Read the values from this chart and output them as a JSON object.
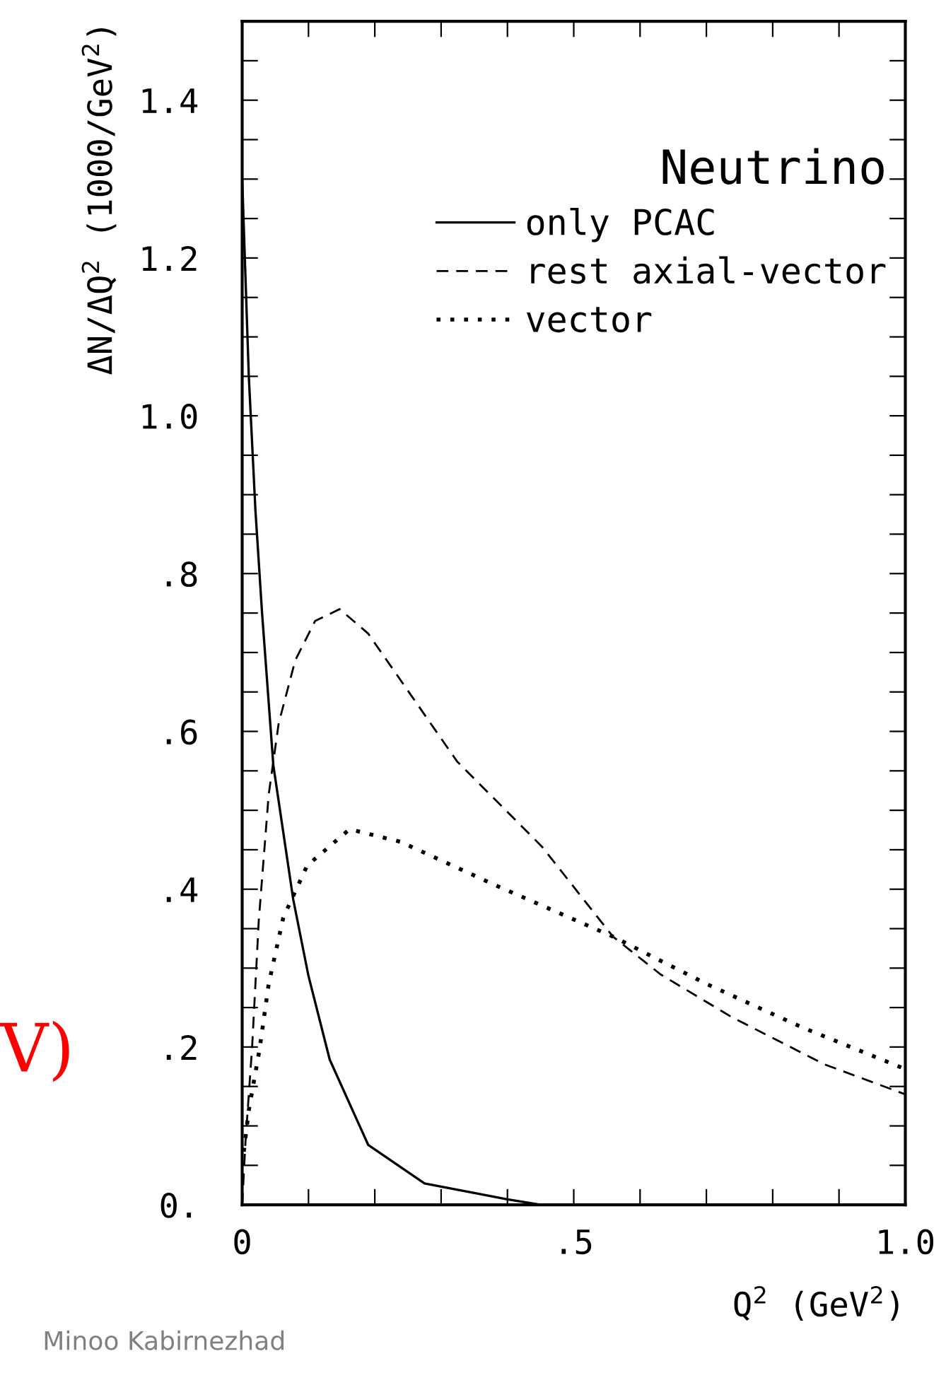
{
  "chart_data": {
    "type": "line",
    "xlabel": "Q$^{2}$ (GeV$^{2}$)",
    "ylabel": "ΔN/ΔQ$^{2}$ (1000/GeV$^{2}$)",
    "legend_title": "Neutrino",
    "legend": "top right",
    "grid": false,
    "xlim": [
      0,
      1.0
    ],
    "ylim": [
      0,
      1.5
    ],
    "xticks": [
      {
        "value": 0,
        "label": "0"
      },
      {
        "value": 0.1,
        "label": null
      },
      {
        "value": 0.2,
        "label": null
      },
      {
        "value": 0.3,
        "label": null
      },
      {
        "value": 0.4,
        "label": null
      },
      {
        "value": 0.5,
        "label": ".5"
      },
      {
        "value": 0.6,
        "label": null
      },
      {
        "value": 0.7,
        "label": null
      },
      {
        "value": 0.8,
        "label": null
      },
      {
        "value": 0.9,
        "label": null
      },
      {
        "value": 1.0,
        "label": "1.0"
      }
    ],
    "yticks": [
      {
        "value": 0,
        "label": "0."
      },
      {
        "value": 0.05,
        "label": null
      },
      {
        "value": 0.1,
        "label": null
      },
      {
        "value": 0.15,
        "label": null
      },
      {
        "value": 0.2,
        "label": ".2"
      },
      {
        "value": 0.25,
        "label": null
      },
      {
        "value": 0.3,
        "label": null
      },
      {
        "value": 0.35,
        "label": null
      },
      {
        "value": 0.4,
        "label": ".4"
      },
      {
        "value": 0.45,
        "label": null
      },
      {
        "value": 0.5,
        "label": null
      },
      {
        "value": 0.55,
        "label": null
      },
      {
        "value": 0.6,
        "label": ".6"
      },
      {
        "value": 0.65,
        "label": null
      },
      {
        "value": 0.7,
        "label": null
      },
      {
        "value": 0.75,
        "label": null
      },
      {
        "value": 0.8,
        "label": ".8"
      },
      {
        "value": 0.85,
        "label": null
      },
      {
        "value": 0.9,
        "label": null
      },
      {
        "value": 0.95,
        "label": null
      },
      {
        "value": 1.0,
        "label": "1.0"
      },
      {
        "value": 1.05,
        "label": null
      },
      {
        "value": 1.1,
        "label": null
      },
      {
        "value": 1.15,
        "label": null
      },
      {
        "value": 1.2,
        "label": "1.2"
      },
      {
        "value": 1.25,
        "label": null
      },
      {
        "value": 1.3,
        "label": null
      },
      {
        "value": 1.35,
        "label": null
      },
      {
        "value": 1.4,
        "label": "1.4"
      },
      {
        "value": 1.45,
        "label": null
      },
      {
        "value": 1.5,
        "label": null
      }
    ],
    "annotations": [
      "V)",
      "Minoo Kabirnezhad"
    ],
    "series": [
      {
        "name": "only PCAC",
        "color": "#000000",
        "line_style": "solid",
        "x": [
          0,
          0.01,
          0.02,
          0.03,
          0.047,
          0.077,
          0.1,
          0.132,
          0.19,
          0.275,
          0.4,
          0.45
        ],
        "values": [
          1.3,
          1.05,
          0.88,
          0.75,
          0.557,
          0.387,
          0.29,
          0.184,
          0.076,
          0.027,
          0.007,
          0
        ]
      },
      {
        "name": "rest axial-vector",
        "color": "#000000",
        "line_style": "dashed",
        "x": [
          0,
          0.005,
          0.015,
          0.025,
          0.04,
          0.055,
          0.08,
          0.11,
          0.147,
          0.19,
          0.324,
          0.452,
          0.559,
          0.631,
          0.738,
          0.878,
          1.0
        ],
        "values": [
          0,
          0.08,
          0.2,
          0.36,
          0.52,
          0.61,
          0.69,
          0.74,
          0.755,
          0.724,
          0.562,
          0.454,
          0.34,
          0.292,
          0.238,
          0.178,
          0.14
        ]
      },
      {
        "name": "vector",
        "color": "#000000",
        "line_style": "dotted",
        "x": [
          0,
          0.01,
          0.026,
          0.04,
          0.062,
          0.098,
          0.162,
          0.239,
          0.382,
          0.559,
          0.7,
          0.844,
          1.0
        ],
        "values": [
          0.05,
          0.12,
          0.196,
          0.28,
          0.364,
          0.43,
          0.476,
          0.46,
          0.405,
          0.34,
          0.28,
          0.225,
          0.172
        ]
      }
    ]
  }
}
